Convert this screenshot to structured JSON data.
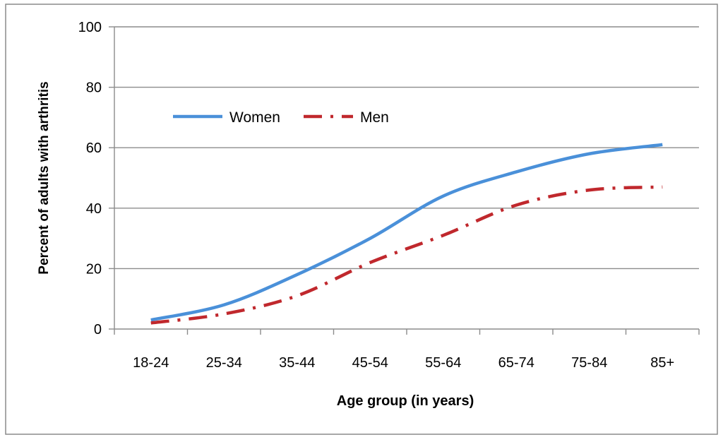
{
  "chart_data": {
    "type": "line",
    "title": "",
    "xlabel": "Age group (in years)",
    "ylabel": "Percent of adults with arthritis",
    "categories": [
      "18-24",
      "25-34",
      "35-44",
      "45-54",
      "55-64",
      "65-74",
      "75-84",
      "85+"
    ],
    "ylim": [
      0,
      100
    ],
    "yticks": [
      0,
      20,
      40,
      60,
      80,
      100
    ],
    "grid": true,
    "legend": "top-left",
    "series": [
      {
        "name": "Women",
        "color": "#4a90d9",
        "style": "solid",
        "values": [
          3,
          8,
          18,
          30,
          44,
          52,
          58,
          61
        ]
      },
      {
        "name": "Men",
        "color": "#c0282d",
        "style": "dash-dot",
        "values": [
          2,
          5,
          11,
          22,
          31,
          41,
          46,
          47
        ]
      }
    ]
  }
}
